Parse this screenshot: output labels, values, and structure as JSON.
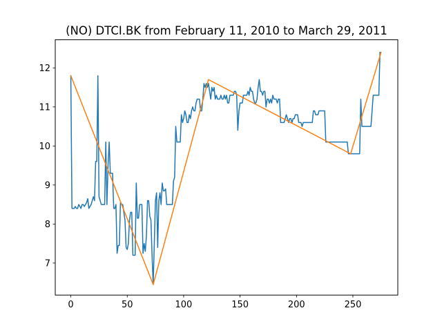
{
  "chart_data": {
    "type": "line",
    "title": "(NO) DTCI.BK from February 11, 2010 to March 29, 2011",
    "xlabel": "",
    "ylabel": "",
    "xlim": [
      -13.8,
      289.8
    ],
    "ylim": [
      6.18,
      12.72
    ],
    "x_ticks": [
      0,
      50,
      100,
      150,
      200,
      250
    ],
    "y_ticks": [
      7,
      8,
      9,
      10,
      11,
      12
    ],
    "grid": false,
    "legend": "none",
    "series": [
      {
        "color": "#1f77b4",
        "points": [
          [
            0,
            11.8
          ],
          [
            1,
            8.4
          ],
          [
            2,
            8.4
          ],
          [
            3,
            8.4
          ],
          [
            4,
            8.45
          ],
          [
            5,
            8.4
          ],
          [
            6,
            8.4
          ],
          [
            7,
            8.5
          ],
          [
            8,
            8.45
          ],
          [
            9,
            8.4
          ],
          [
            10,
            8.5
          ],
          [
            11,
            8.5
          ],
          [
            12,
            8.45
          ],
          [
            13,
            8.5
          ],
          [
            14,
            8.55
          ],
          [
            15,
            8.65
          ],
          [
            16,
            8.4
          ],
          [
            17,
            8.45
          ],
          [
            18,
            8.5
          ],
          [
            19,
            8.6
          ],
          [
            20,
            8.7
          ],
          [
            21,
            8.6
          ],
          [
            22,
            9.6
          ],
          [
            23,
            9.6
          ],
          [
            24,
            11.8
          ],
          [
            25,
            8.7
          ],
          [
            26,
            8.6
          ],
          [
            27,
            8.5
          ],
          [
            28,
            8.5
          ],
          [
            29,
            8.5
          ],
          [
            30,
            8.5
          ],
          [
            31,
            10.1
          ],
          [
            32,
            8.5
          ],
          [
            33,
            9.5
          ],
          [
            34,
            10.1
          ],
          [
            35,
            9.3
          ],
          [
            36,
            9.3
          ],
          [
            37,
            9.3
          ],
          [
            38,
            8.4
          ],
          [
            39,
            8.4
          ],
          [
            40,
            8.5
          ],
          [
            41,
            7.25
          ],
          [
            42,
            7.45
          ],
          [
            43,
            7.45
          ],
          [
            44,
            8.55
          ],
          [
            45,
            8.5
          ],
          [
            46,
            8.5
          ],
          [
            47,
            8.3
          ],
          [
            48,
            8.1
          ],
          [
            49,
            7.4
          ],
          [
            50,
            7.35
          ],
          [
            51,
            7.5
          ],
          [
            52,
            8.1
          ],
          [
            53,
            8.3
          ],
          [
            54,
            8.3
          ],
          [
            55,
            7.2
          ],
          [
            56,
            7.2
          ],
          [
            57,
            7.2
          ],
          [
            58,
            9.05
          ],
          [
            59,
            8.15
          ],
          [
            60,
            8.15
          ],
          [
            61,
            8.5
          ],
          [
            62,
            8.5
          ],
          [
            63,
            8.5
          ],
          [
            64,
            7.25
          ],
          [
            65,
            7.5
          ],
          [
            66,
            7.3
          ],
          [
            67,
            7.7
          ],
          [
            68,
            8.6
          ],
          [
            69,
            8.6
          ],
          [
            70,
            8.2
          ],
          [
            71,
            8.1
          ],
          [
            72,
            7.2
          ],
          [
            73,
            6.45
          ],
          [
            74,
            7.5
          ],
          [
            75,
            8.6
          ],
          [
            76,
            8.8
          ],
          [
            77,
            7.4
          ],
          [
            78,
            8.6
          ],
          [
            79,
            8.8
          ],
          [
            80,
            8.5
          ],
          [
            81,
            9.05
          ],
          [
            82,
            8.85
          ],
          [
            83,
            8.85
          ],
          [
            84,
            8.9
          ],
          [
            85,
            8.5
          ],
          [
            86,
            8.5
          ],
          [
            87,
            8.5
          ],
          [
            88,
            8.5
          ],
          [
            89,
            8.5
          ],
          [
            90,
            8.5
          ],
          [
            91,
            9.1
          ],
          [
            92,
            9.2
          ],
          [
            93,
            10.5
          ],
          [
            94,
            10.1
          ],
          [
            95,
            10.1
          ],
          [
            96,
            10.1
          ],
          [
            97,
            10.1
          ],
          [
            98,
            10.8
          ],
          [
            99,
            10.6
          ],
          [
            100,
            10.7
          ],
          [
            101,
            10.9
          ],
          [
            102,
            10.8
          ],
          [
            103,
            10.6
          ],
          [
            104,
            10.6
          ],
          [
            105,
            10.8
          ],
          [
            106,
            10.7
          ],
          [
            107,
            10.9
          ],
          [
            108,
            11.0
          ],
          [
            109,
            10.9
          ],
          [
            110,
            10.9
          ],
          [
            111,
            11.1
          ],
          [
            112,
            11.2
          ],
          [
            113,
            11.2
          ],
          [
            114,
            11.2
          ],
          [
            115,
            10.9
          ],
          [
            116,
            10.9
          ],
          [
            117,
            11.2
          ],
          [
            118,
            11.6
          ],
          [
            119,
            11.5
          ],
          [
            120,
            11.6
          ],
          [
            121,
            11.5
          ],
          [
            122,
            11.6
          ],
          [
            123,
            11.4
          ],
          [
            124,
            11.2
          ],
          [
            125,
            11.5
          ],
          [
            126,
            11.4
          ],
          [
            127,
            11.5
          ],
          [
            128,
            11.2
          ],
          [
            129,
            11.3
          ],
          [
            130,
            11.2
          ],
          [
            131,
            11.2
          ],
          [
            132,
            11.2
          ],
          [
            133,
            11.3
          ],
          [
            134,
            11.2
          ],
          [
            135,
            11.2
          ],
          [
            136,
            11.3
          ],
          [
            137,
            11.2
          ],
          [
            138,
            11.3
          ],
          [
            139,
            11.1
          ],
          [
            140,
            11.1
          ],
          [
            141,
            11.3
          ],
          [
            142,
            11.3
          ],
          [
            143,
            11.3
          ],
          [
            144,
            11.3
          ],
          [
            145,
            11.4
          ],
          [
            146,
            11.4
          ],
          [
            147,
            11.3
          ],
          [
            148,
            10.4
          ],
          [
            149,
            10.9
          ],
          [
            150,
            11.1
          ],
          [
            151,
            11.1
          ],
          [
            152,
            11.1
          ],
          [
            153,
            11.3
          ],
          [
            154,
            11.3
          ],
          [
            155,
            11.3
          ],
          [
            156,
            11.3
          ],
          [
            157,
            11.4
          ],
          [
            158,
            11.3
          ],
          [
            159,
            11.5
          ],
          [
            160,
            11.4
          ],
          [
            161,
            11.4
          ],
          [
            162,
            11.2
          ],
          [
            163,
            11.1
          ],
          [
            164,
            11.1
          ],
          [
            165,
            11.2
          ],
          [
            166,
            11.5
          ],
          [
            167,
            11.7
          ],
          [
            168,
            11.4
          ],
          [
            169,
            11.4
          ],
          [
            170,
            11.3
          ],
          [
            171,
            11.4
          ],
          [
            172,
            11.4
          ],
          [
            173,
            11.0
          ],
          [
            174,
            11.2
          ],
          [
            175,
            11.2
          ],
          [
            176,
            11.1
          ],
          [
            177,
            11.2
          ],
          [
            178,
            11.1
          ],
          [
            179,
            11.3
          ],
          [
            180,
            11.2
          ],
          [
            181,
            11.2
          ],
          [
            182,
            11.2
          ],
          [
            183,
            11.1
          ],
          [
            184,
            11.2
          ],
          [
            185,
            11.2
          ],
          [
            186,
            10.6
          ],
          [
            187,
            10.6
          ],
          [
            188,
            10.6
          ],
          [
            189,
            10.6
          ],
          [
            190,
            10.7
          ],
          [
            191,
            10.8
          ],
          [
            192,
            10.7
          ],
          [
            193,
            10.6
          ],
          [
            194,
            10.7
          ],
          [
            195,
            10.7
          ],
          [
            196,
            10.6
          ],
          [
            197,
            10.7
          ],
          [
            198,
            10.7
          ],
          [
            199,
            10.8
          ],
          [
            200,
            10.8
          ],
          [
            201,
            10.8
          ],
          [
            202,
            10.6
          ],
          [
            203,
            10.6
          ],
          [
            204,
            10.6
          ],
          [
            205,
            10.5
          ],
          [
            206,
            10.6
          ],
          [
            207,
            10.6
          ],
          [
            208,
            10.6
          ],
          [
            209,
            10.6
          ],
          [
            210,
            10.6
          ],
          [
            211,
            10.6
          ],
          [
            212,
            10.6
          ],
          [
            213,
            10.6
          ],
          [
            214,
            10.6
          ],
          [
            215,
            10.9
          ],
          [
            216,
            10.9
          ],
          [
            217,
            10.8
          ],
          [
            218,
            10.8
          ],
          [
            219,
            10.8
          ],
          [
            220,
            10.9
          ],
          [
            221,
            10.9
          ],
          [
            222,
            10.9
          ],
          [
            223,
            10.9
          ],
          [
            224,
            10.9
          ],
          [
            225,
            10.9
          ],
          [
            226,
            10.1
          ],
          [
            230,
            10.1
          ],
          [
            240,
            10.1
          ],
          [
            245,
            10.1
          ],
          [
            246,
            9.8
          ],
          [
            250,
            9.8
          ],
          [
            255,
            9.8
          ],
          [
            256,
            9.8
          ],
          [
            257,
            11.2
          ],
          [
            258,
            10.5
          ],
          [
            265,
            10.5
          ],
          [
            266,
            10.5
          ],
          [
            267,
            10.9
          ],
          [
            268,
            11.3
          ],
          [
            272,
            11.3
          ],
          [
            273,
            11.3
          ],
          [
            274,
            12.4
          ]
        ]
      },
      {
        "color": "#ff7f0e",
        "points": [
          [
            0,
            11.8
          ],
          [
            73,
            6.45
          ],
          [
            122,
            11.7
          ],
          [
            248,
            9.8
          ],
          [
            275,
            12.4
          ]
        ]
      }
    ]
  }
}
